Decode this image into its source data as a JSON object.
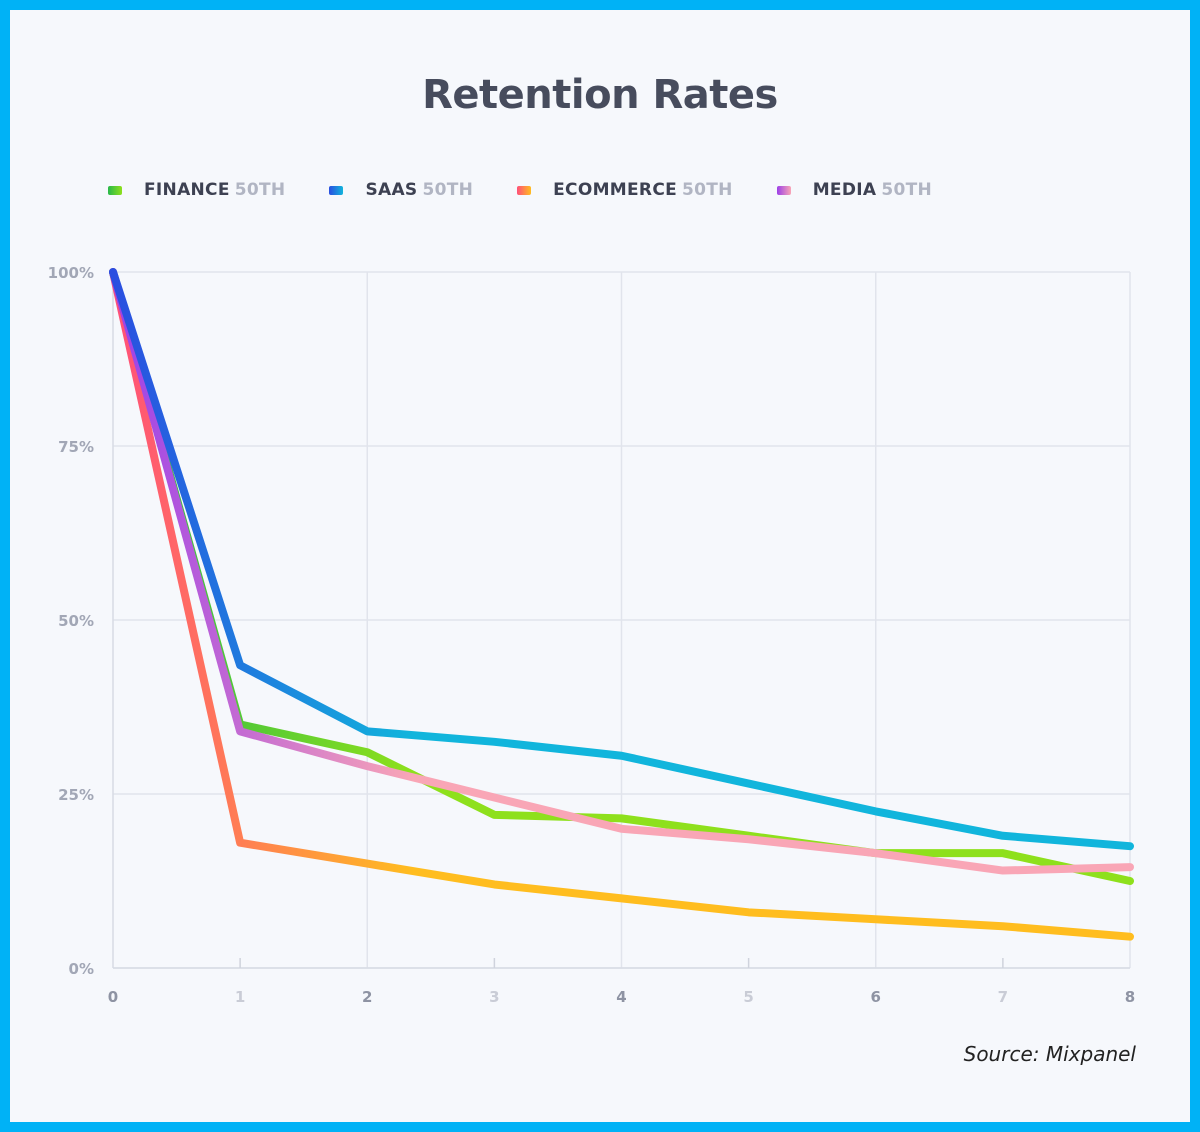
{
  "chart_data": {
    "type": "line",
    "title": "Retention Rates",
    "xlabel": "",
    "ylabel": "",
    "x": [
      0,
      1,
      2,
      3,
      4,
      5,
      6,
      7,
      8
    ],
    "x_tick_labels": [
      "0",
      "1",
      "2",
      "3",
      "4",
      "5",
      "6",
      "7",
      "8"
    ],
    "y_tick_labels": [
      "100%",
      "75%",
      "50%",
      "25%",
      "0%"
    ],
    "y_ticks": [
      100,
      75,
      50,
      25,
      0
    ],
    "xlim": [
      0,
      8
    ],
    "ylim": [
      0,
      100
    ],
    "grid": true,
    "legend_position": "top-left",
    "series": [
      {
        "name": "FINANCE",
        "percentile": "50TH",
        "color_start": "#28b84a",
        "color_end": "#8ee01c",
        "values": [
          100,
          35,
          31,
          22,
          21.5,
          19,
          16.5,
          16.5,
          12.5
        ]
      },
      {
        "name": "SAAS",
        "percentile": "50TH",
        "color_start": "#2a4ee0",
        "color_end": "#11b5dc",
        "values": [
          100,
          43.5,
          34,
          32.5,
          30.5,
          26.5,
          22.5,
          19,
          17.5
        ]
      },
      {
        "name": "ECOMMERCE",
        "percentile": "50TH",
        "color_start": "#ff4f7a",
        "color_end": "#ffbd1f",
        "values": [
          100,
          18,
          15,
          12,
          10,
          8,
          7,
          6,
          4.5
        ]
      },
      {
        "name": "MEDIA",
        "percentile": "50TH",
        "color_start": "#9c3fe8",
        "color_end": "#f9a6b6",
        "values": [
          100,
          34,
          29,
          24.5,
          20,
          18.5,
          16.5,
          14,
          14.5
        ]
      }
    ]
  },
  "source": "Source: Mixpanel"
}
